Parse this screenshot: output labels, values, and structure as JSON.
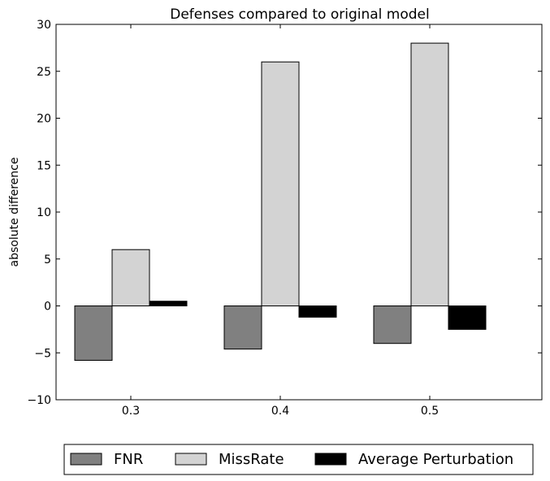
{
  "chart_data": {
    "type": "bar",
    "title": "Defenses compared to original model",
    "xlabel": "",
    "ylabel": "absolute difference",
    "categories": [
      "0.3",
      "0.4",
      "0.5"
    ],
    "ylim": [
      -10,
      30
    ],
    "yticks": [
      "−10",
      "−5",
      "0",
      "5",
      "10",
      "15",
      "20",
      "25",
      "30"
    ],
    "grid": false,
    "legend_position": "bottom",
    "series": [
      {
        "name": "FNR",
        "values": [
          -5.8,
          -4.6,
          -4.0
        ],
        "color": "#808080"
      },
      {
        "name": "MissRate",
        "values": [
          6.0,
          26.0,
          28.0
        ],
        "color": "#d3d3d3"
      },
      {
        "name": "Average Perturbation",
        "values": [
          0.5,
          -1.2,
          -2.5
        ],
        "color": "#000000"
      }
    ]
  }
}
